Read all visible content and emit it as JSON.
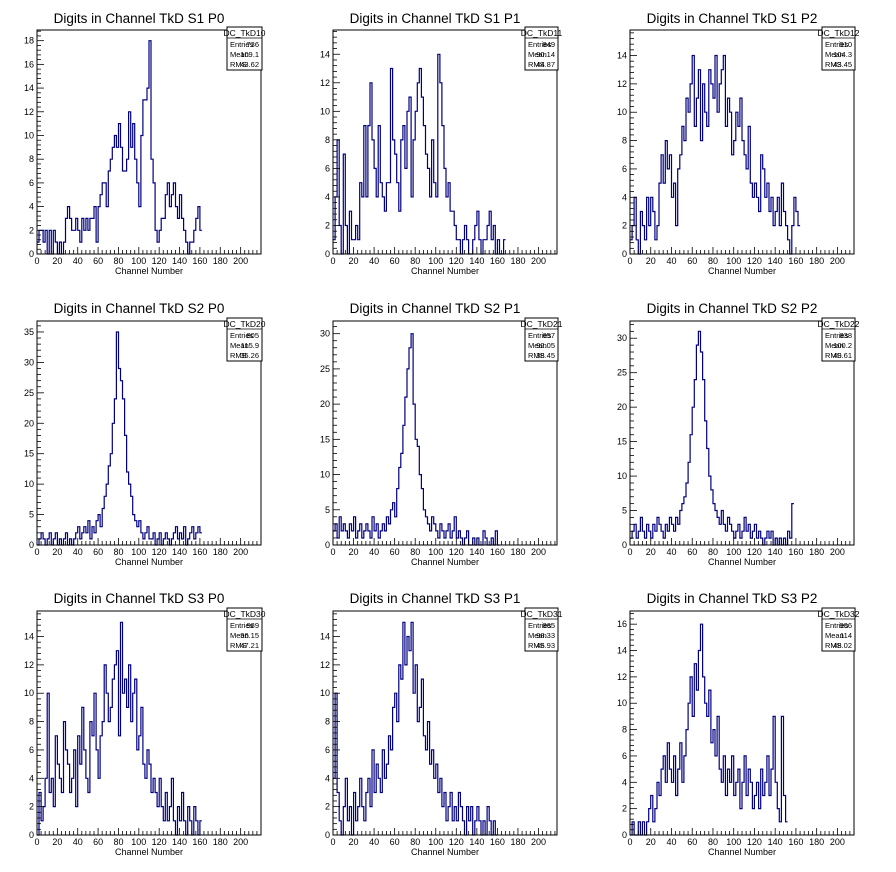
{
  "chart_data": [
    {
      "type": "bar",
      "title": "Digits in Channel TkD S1 P0",
      "xlabel": "Channel Number",
      "ylabel": "",
      "xlim": [
        0,
        220
      ],
      "ylim": [
        0,
        18.9
      ],
      "xticks": [
        0,
        20,
        40,
        60,
        80,
        100,
        120,
        140,
        160,
        180,
        200
      ],
      "yticks": [
        0,
        2,
        4,
        6,
        8,
        10,
        12,
        14,
        16,
        18
      ],
      "stats": {
        "name": "DC_TkD10",
        "entries": "736",
        "mean": "109.1",
        "rms": "43.62"
      },
      "x_start": 0,
      "bin_width": 2,
      "values": [
        1,
        2,
        2,
        1,
        2,
        0,
        2,
        0,
        2,
        1,
        0,
        1,
        0,
        1,
        3,
        4,
        3,
        2,
        2,
        3,
        2,
        1,
        3,
        2,
        3,
        2,
        3,
        3,
        4,
        1,
        4,
        5,
        6,
        6,
        4,
        7,
        8,
        9,
        10,
        9,
        11,
        9,
        7,
        7,
        8,
        12,
        9,
        11,
        8,
        6,
        4,
        10,
        13,
        13,
        14,
        18,
        8,
        6,
        2,
        1,
        2,
        3,
        3,
        5,
        6,
        4,
        5,
        6,
        4,
        3,
        5,
        3,
        2,
        1,
        0,
        1,
        1,
        2,
        3,
        4,
        2
      ]
    },
    {
      "type": "bar",
      "title": "Digits in Channel TkD S1 P1",
      "xlabel": "Channel Number",
      "ylabel": "",
      "xlim": [
        0,
        218
      ],
      "ylim": [
        0,
        15.7
      ],
      "xticks": [
        0,
        20,
        40,
        60,
        80,
        100,
        120,
        140,
        160,
        180,
        200
      ],
      "yticks": [
        0,
        2,
        4,
        6,
        8,
        10,
        12,
        14
      ],
      "stats": {
        "name": "DC_TkD11",
        "entries": "849",
        "mean": "90.14",
        "rms": "44.87"
      },
      "x_start": 0,
      "bin_width": 2,
      "values": [
        1,
        4,
        8,
        2,
        0,
        7,
        2,
        0,
        3,
        1,
        1,
        2,
        1,
        5,
        4,
        9,
        4,
        9,
        12,
        8,
        6,
        4,
        9,
        5,
        4,
        3,
        5,
        5,
        13,
        8,
        7,
        5,
        3,
        8,
        9,
        6,
        10,
        11,
        4,
        8,
        10,
        12,
        13,
        11,
        9,
        7,
        6,
        4,
        8,
        5,
        4,
        14,
        12,
        9,
        6,
        4,
        5,
        3,
        3,
        2,
        1,
        1,
        0,
        1,
        2,
        1,
        0,
        0,
        1,
        2,
        3,
        1,
        0,
        1,
        1,
        2,
        3,
        1,
        2,
        0,
        1,
        0,
        0,
        1
      ]
    },
    {
      "type": "bar",
      "title": "Digits in Channel TkD S1 P2",
      "xlabel": "Channel Number",
      "ylabel": "",
      "xlim": [
        0,
        216
      ],
      "ylim": [
        0,
        15.8
      ],
      "xticks": [
        0,
        20,
        40,
        60,
        80,
        100,
        120,
        140,
        160,
        180,
        200
      ],
      "yticks": [
        0,
        2,
        4,
        6,
        8,
        10,
        12,
        14
      ],
      "stats": {
        "name": "DC_TkD12",
        "entries": "910",
        "mean": "104.3",
        "rms": "43.45"
      },
      "x_start": 0,
      "bin_width": 2,
      "values": [
        1,
        2,
        4,
        1,
        0,
        3,
        2,
        1,
        4,
        2,
        4,
        3,
        1,
        2,
        5,
        7,
        5,
        8,
        6,
        7,
        4,
        5,
        2,
        6,
        7,
        9,
        8,
        11,
        10,
        12,
        14,
        9,
        11,
        13,
        8,
        12,
        10,
        9,
        13,
        12,
        11,
        14,
        10,
        12,
        13,
        14,
        9,
        11,
        10,
        7,
        8,
        10,
        9,
        11,
        8,
        7,
        6,
        9,
        5,
        4,
        5,
        4,
        3,
        7,
        6,
        4,
        5,
        3,
        4,
        2,
        3,
        4,
        2,
        5,
        3,
        2,
        1,
        0,
        2,
        4,
        3,
        2
      ]
    },
    {
      "type": "bar",
      "title": "Digits in Channel TkD S2 P0",
      "xlabel": "Channel Number",
      "ylabel": "",
      "xlim": [
        0,
        220
      ],
      "ylim": [
        0,
        36.8
      ],
      "xticks": [
        0,
        20,
        40,
        60,
        80,
        100,
        120,
        140,
        160,
        180,
        200
      ],
      "yticks": [
        0,
        5,
        10,
        15,
        20,
        25,
        30,
        35
      ],
      "stats": {
        "name": "DC_TkD20",
        "entries": "805",
        "mean": "115.9",
        "rms": "35.26"
      },
      "x_start": 0,
      "bin_width": 2,
      "values": [
        0,
        1,
        2,
        1,
        0,
        1,
        2,
        0,
        1,
        2,
        0,
        1,
        0,
        1,
        2,
        0,
        1,
        0,
        1,
        2,
        3,
        1,
        2,
        3,
        2,
        4,
        1,
        3,
        2,
        4,
        5,
        3,
        6,
        8,
        10,
        13,
        15,
        20,
        24,
        35,
        29,
        27,
        24,
        18,
        12,
        10,
        8,
        5,
        4,
        3,
        4,
        2,
        1,
        2,
        3,
        1,
        1,
        2,
        0,
        1,
        2,
        0,
        1,
        2,
        1,
        0,
        1,
        2,
        3,
        1,
        2,
        1,
        3,
        0,
        1,
        2,
        3,
        1,
        2,
        3,
        2
      ]
    },
    {
      "type": "bar",
      "title": "Digits in Channel TkD S2 P1",
      "xlabel": "Channel Number",
      "ylabel": "",
      "xlim": [
        0,
        218
      ],
      "ylim": [
        0,
        31.8
      ],
      "xticks": [
        0,
        20,
        40,
        60,
        80,
        100,
        120,
        140,
        160,
        180,
        200
      ],
      "yticks": [
        0,
        5,
        10,
        15,
        20,
        25,
        30
      ],
      "stats": {
        "name": "DC_TkD21",
        "entries": "657",
        "mean": "92.05",
        "rms": "38.45"
      },
      "x_start": 0,
      "bin_width": 2,
      "values": [
        2,
        3,
        1,
        4,
        2,
        3,
        2,
        1,
        3,
        2,
        4,
        1,
        2,
        3,
        1,
        2,
        3,
        2,
        1,
        4,
        2,
        3,
        1,
        2,
        3,
        2,
        4,
        3,
        5,
        6,
        4,
        8,
        11,
        13,
        17,
        21,
        25,
        28,
        30,
        20,
        15,
        14,
        10,
        8,
        5,
        4,
        3,
        2,
        4,
        3,
        2,
        1,
        3,
        2,
        1,
        2,
        3,
        1,
        2,
        4,
        1,
        2,
        1,
        0,
        1,
        2,
        0,
        0,
        1,
        0,
        1,
        0,
        0,
        2,
        1,
        0,
        0,
        1,
        0,
        2,
        0
      ]
    },
    {
      "type": "bar",
      "title": "Digits in Channel TkD S2 P2",
      "xlabel": "Channel Number",
      "ylabel": "",
      "xlim": [
        0,
        216
      ],
      "ylim": [
        0,
        32.5
      ],
      "xticks": [
        0,
        20,
        40,
        60,
        80,
        100,
        120,
        140,
        160,
        180,
        200
      ],
      "yticks": [
        0,
        5,
        10,
        15,
        20,
        25,
        30
      ],
      "stats": {
        "name": "DC_TkD22",
        "entries": "838",
        "mean": "100.2",
        "rms": "40.61"
      },
      "x_start": 0,
      "bin_width": 2,
      "values": [
        1,
        2,
        3,
        1,
        2,
        4,
        2,
        1,
        3,
        2,
        1,
        3,
        2,
        4,
        3,
        2,
        1,
        3,
        2,
        4,
        3,
        2,
        4,
        3,
        5,
        6,
        7,
        9,
        12,
        16,
        20,
        24,
        29,
        31,
        28,
        24,
        18,
        14,
        10,
        8,
        6,
        5,
        4,
        3,
        5,
        3,
        2,
        4,
        3,
        2,
        1,
        2,
        3,
        1,
        2,
        4,
        2,
        3,
        1,
        2,
        3,
        1,
        2,
        1,
        0,
        1,
        2,
        1,
        2,
        0,
        1,
        0,
        1,
        0,
        1,
        0,
        2,
        1,
        6
      ]
    },
    {
      "type": "bar",
      "title": "Digits in Channel TkD S3 P0",
      "xlabel": "Channel Number",
      "ylabel": "",
      "xlim": [
        0,
        220
      ],
      "ylim": [
        0,
        15.8
      ],
      "xticks": [
        0,
        20,
        40,
        60,
        80,
        100,
        120,
        140,
        160,
        180,
        200
      ],
      "yticks": [
        0,
        2,
        4,
        6,
        8,
        10,
        12,
        14
      ],
      "stats": {
        "name": "DC_TkD30",
        "entries": "989",
        "mean": "96.15",
        "rms": "47.21"
      },
      "x_start": 0,
      "bin_width": 2,
      "values": [
        0,
        3,
        1,
        2,
        4,
        10,
        3,
        4,
        2,
        7,
        5,
        4,
        3,
        8,
        6,
        5,
        3,
        4,
        6,
        2,
        7,
        5,
        9,
        6,
        4,
        3,
        8,
        7,
        10,
        6,
        4,
        7,
        8,
        12,
        10,
        8,
        9,
        11,
        12,
        13,
        7,
        15,
        10,
        11,
        9,
        12,
        8,
        10,
        11,
        6,
        7,
        9,
        5,
        4,
        6,
        5,
        3,
        4,
        3,
        2,
        4,
        2,
        1,
        3,
        1,
        2,
        4,
        1,
        0,
        2,
        1,
        3,
        1,
        0,
        2,
        1,
        0,
        2,
        1,
        0,
        1
      ]
    },
    {
      "type": "bar",
      "title": "Digits in Channel TkD S3 P1",
      "xlabel": "Channel Number",
      "ylabel": "",
      "xlim": [
        0,
        218
      ],
      "ylim": [
        0,
        15.8
      ],
      "xticks": [
        0,
        20,
        40,
        60,
        80,
        100,
        120,
        140,
        160,
        180,
        200
      ],
      "yticks": [
        0,
        2,
        4,
        6,
        8,
        10,
        12,
        14
      ],
      "stats": {
        "name": "DC_TkD31",
        "entries": "865",
        "mean": "98.33",
        "rms": "46.93"
      },
      "x_start": 0,
      "bin_width": 2,
      "values": [
        4,
        10,
        3,
        1,
        0,
        2,
        4,
        1,
        2,
        0,
        3,
        1,
        2,
        4,
        2,
        1,
        3,
        4,
        2,
        6,
        3,
        5,
        4,
        3,
        6,
        4,
        5,
        7,
        6,
        9,
        10,
        8,
        12,
        11,
        15,
        12,
        14,
        13,
        15,
        10,
        12,
        8,
        9,
        11,
        7,
        6,
        8,
        5,
        6,
        4,
        5,
        3,
        4,
        2,
        3,
        1,
        2,
        3,
        1,
        2,
        1,
        3,
        2,
        1,
        0,
        2,
        1,
        2,
        0,
        1,
        2,
        1,
        0,
        1,
        0,
        2,
        1,
        0,
        1,
        0
      ]
    },
    {
      "type": "bar",
      "title": "Digits in Channel TkD S3 P2",
      "xlabel": "Channel Number",
      "ylabel": "",
      "xlim": [
        0,
        216
      ],
      "ylim": [
        0,
        17
      ],
      "xticks": [
        0,
        20,
        40,
        60,
        80,
        100,
        120,
        140,
        160,
        180,
        200
      ],
      "yticks": [
        0,
        2,
        4,
        6,
        8,
        10,
        12,
        14,
        16
      ],
      "stats": {
        "name": "DC_TkD32",
        "entries": "906",
        "mean": "114",
        "rms": "48.02"
      },
      "x_start": 0,
      "bin_width": 2,
      "values": [
        0,
        1,
        0,
        0,
        1,
        0,
        1,
        0,
        1,
        2,
        3,
        1,
        2,
        4,
        3,
        5,
        6,
        4,
        7,
        5,
        4,
        6,
        3,
        5,
        7,
        4,
        6,
        8,
        10,
        12,
        9,
        13,
        11,
        14,
        16,
        12,
        10,
        9,
        11,
        7,
        8,
        6,
        9,
        5,
        4,
        6,
        3,
        5,
        4,
        6,
        3,
        4,
        5,
        2,
        4,
        6,
        3,
        5,
        4,
        2,
        3,
        4,
        2,
        5,
        3,
        4,
        6,
        3,
        5,
        9,
        4,
        2,
        1,
        9,
        3,
        1
      ]
    }
  ],
  "ui": {
    "stat_labels": {
      "entries": "Entries",
      "mean": "Mean",
      "rms": "RMS"
    },
    "line_color": "#000080",
    "frame_color": "#000000"
  }
}
